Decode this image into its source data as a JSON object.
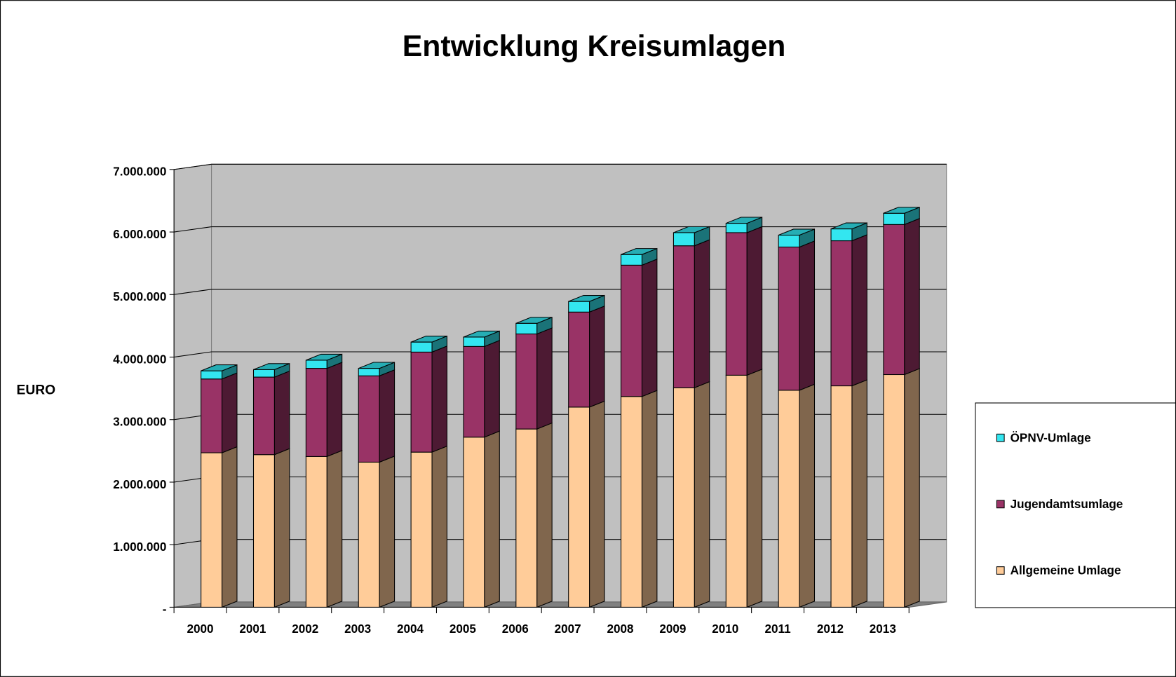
{
  "chart_data": {
    "type": "bar3d_stacked",
    "title": "Entwicklung Kreisumlagen",
    "y_label": "EURO",
    "categories": [
      "2000",
      "2001",
      "2002",
      "2003",
      "2004",
      "2005",
      "2006",
      "2007",
      "2008",
      "2009",
      "2010",
      "2011",
      "2012",
      "2013"
    ],
    "series": [
      {
        "name": "Allgemeine Umlage",
        "color": "#ffcc99",
        "values": [
          2470000,
          2440000,
          2410000,
          2320000,
          2480000,
          2720000,
          2850000,
          3200000,
          3370000,
          3510000,
          3710000,
          3470000,
          3540000,
          3720000
        ]
      },
      {
        "name": "Jugendamtsumlage",
        "color": "#993366",
        "values": [
          1180000,
          1240000,
          1410000,
          1380000,
          1600000,
          1450000,
          1520000,
          1520000,
          2100000,
          2270000,
          2280000,
          2290000,
          2320000,
          2400000
        ]
      },
      {
        "name": "ÖPNV-Umlage",
        "color": "#33e6f0",
        "values": [
          130000,
          120000,
          130000,
          120000,
          160000,
          150000,
          170000,
          170000,
          170000,
          210000,
          150000,
          190000,
          190000,
          180000
        ]
      }
    ],
    "ylim": [
      0,
      7000000
    ],
    "yticks": [
      {
        "value": 0,
        "label": "-"
      },
      {
        "value": 1000000,
        "label": "1.000.000"
      },
      {
        "value": 2000000,
        "label": "2.000.000"
      },
      {
        "value": 3000000,
        "label": "3.000.000"
      },
      {
        "value": 4000000,
        "label": "4.000.000"
      },
      {
        "value": 5000000,
        "label": "5.000.000"
      },
      {
        "value": 6000000,
        "label": "6.000.000"
      },
      {
        "value": 7000000,
        "label": "7.000.000"
      }
    ],
    "grid": true,
    "legend": "right"
  }
}
